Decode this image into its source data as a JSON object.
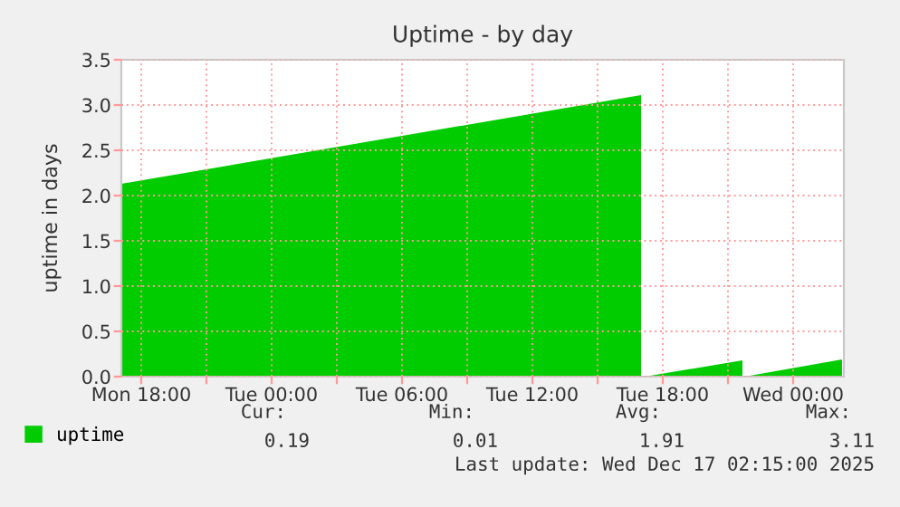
{
  "chart_data": {
    "type": "area",
    "title": "Uptime - by day",
    "ylabel": "uptime in days",
    "x": [
      "2025-12-15T17:05",
      "2025-12-16T17:00",
      "2025-12-16T17:05",
      "2025-12-16T17:25",
      "2025-12-16T21:40",
      "2025-12-16T21:45",
      "2025-12-16T22:00",
      "2025-12-17T02:15"
    ],
    "series": [
      {
        "name": "uptime",
        "color": "#00cc00",
        "values": [
          2.13,
          3.11,
          null,
          0.01,
          0.18,
          null,
          0.01,
          0.19
        ]
      }
    ],
    "xlim": [
      "2025-12-15T17:05",
      "2025-12-17T02:20"
    ],
    "xticks": [
      {
        "value": "2025-12-15T18:00",
        "label": "Mon 18:00"
      },
      {
        "value": "2025-12-15T21:00",
        "label": null
      },
      {
        "value": "2025-12-16T00:00",
        "label": "Tue 00:00"
      },
      {
        "value": "2025-12-16T03:00",
        "label": null
      },
      {
        "value": "2025-12-16T06:00",
        "label": "Tue 06:00"
      },
      {
        "value": "2025-12-16T09:00",
        "label": null
      },
      {
        "value": "2025-12-16T12:00",
        "label": "Tue 12:00"
      },
      {
        "value": "2025-12-16T15:00",
        "label": null
      },
      {
        "value": "2025-12-16T18:00",
        "label": "Tue 18:00"
      },
      {
        "value": "2025-12-16T21:00",
        "label": null
      },
      {
        "value": "2025-12-17T00:00",
        "label": "Wed 00:00"
      }
    ],
    "ylim": [
      0,
      3.5
    ],
    "yticks": [
      {
        "value": 0,
        "label": "0.0"
      },
      {
        "value": 0.5,
        "label": "0.5"
      },
      {
        "value": 1,
        "label": "1.0"
      },
      {
        "value": 1.5,
        "label": "1.5"
      },
      {
        "value": 2,
        "label": "2.0"
      },
      {
        "value": 2.5,
        "label": "2.5"
      },
      {
        "value": 3,
        "label": "3.0"
      },
      {
        "value": 3.5,
        "label": "3.5"
      }
    ],
    "grid": true,
    "legend": "bottom",
    "annotations": [
      "Cur:",
      "Min:",
      "Avg:",
      "Max:",
      "0.19",
      "0.01",
      "1.91",
      "3.11",
      "Last update: Wed Dec 17 02:15:00 2025"
    ]
  }
}
